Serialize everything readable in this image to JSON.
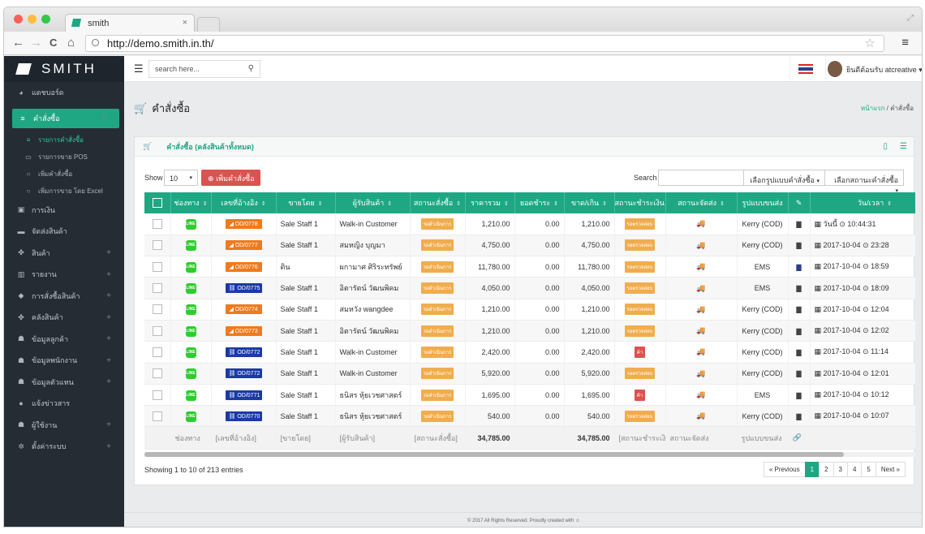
{
  "browser": {
    "tab_title": "smith",
    "tab_close": "×",
    "url": "http://demo.smith.in.th/",
    "back": "←",
    "forward": "→",
    "reload": "C",
    "home": "⌂",
    "star": "☆",
    "menu": "≡"
  },
  "sidebar": {
    "logo": "SMITH",
    "items": [
      {
        "icon": "◕",
        "label": "แดชบอร์ด",
        "plus": ""
      },
      {
        "icon": "≡",
        "label": "คำสั่งซื้อ",
        "plus": "+"
      },
      {
        "icon": "▣",
        "label": "การเงิน",
        "plus": ""
      },
      {
        "icon": "▬",
        "label": "จัดส่งสินค้า",
        "plus": ""
      },
      {
        "icon": "✤",
        "label": "สินค้า",
        "plus": "+"
      },
      {
        "icon": "▥",
        "label": "รายงาน",
        "plus": "+"
      },
      {
        "icon": "◆",
        "label": "การสั่งซื้อสินค้า",
        "plus": "+"
      },
      {
        "icon": "✤",
        "label": "คลังสินค้า",
        "plus": "+"
      },
      {
        "icon": "☗",
        "label": "ข้อมูลลูกค้า",
        "plus": "+"
      },
      {
        "icon": "☗",
        "label": "ข้อมูลพนักงาน",
        "plus": "+"
      },
      {
        "icon": "☗",
        "label": "ข้อมูลตัวแทน",
        "plus": "+"
      },
      {
        "icon": "●",
        "label": "แจ้งข่าวสาร",
        "plus": ""
      },
      {
        "icon": "☗",
        "label": "ผู้ใช้งาน",
        "plus": "+"
      },
      {
        "icon": "✲",
        "label": "ตั้งค่าระบบ",
        "plus": "+"
      }
    ],
    "subitems": [
      {
        "icon": "≡",
        "label": "รายการคำสั่งซื้อ"
      },
      {
        "icon": "▭",
        "label": "รายการขาย POS"
      },
      {
        "icon": "○",
        "label": "เพิ่มคำสั่งซื้อ"
      },
      {
        "icon": "○",
        "label": "เพิ่มการขาย โดย Excel"
      }
    ]
  },
  "topbar": {
    "search_placeholder": "search here...",
    "welcome": "ยินดีต้อนรับ atcreative"
  },
  "page": {
    "title": "คำสั่งซื้อ",
    "breadcrumb_home": "หน้าแรก",
    "breadcrumb_sep": "/",
    "breadcrumb_current": "คำสั่งซื้อ"
  },
  "panel": {
    "title": "คำสั่งซื้อ (คลังสินค้าทั้งหมด)",
    "show_label": "Show",
    "show_value": "10",
    "add_button": "เพิ่มคำสั่งซื้อ",
    "search_label": "Search",
    "filter_shipping": "เลือกรูปแบบคำสั่งซื้อ",
    "filter_status": "เลือกสถานะคำสั่งซื้อ",
    "info": "Showing 1 to 10 of 213 entries",
    "pager": [
      "« Previous",
      "1",
      "2",
      "3",
      "4",
      "5",
      "Next »"
    ]
  },
  "table": {
    "headers": [
      "ช่องทาง",
      "เลขที่อ้างอิง",
      "ขายโดย",
      "ผู้รับสินค้า",
      "สถานะสั่งซื้อ",
      "ราคารวม",
      "ยอดชำระ",
      "ขาด/เกิน",
      "สถานะชำระเงิน",
      "สถานะจัดส่ง",
      "รูปแบบขนส่ง",
      "✎",
      "วัน/เวลา"
    ],
    "rows": [
      {
        "channel": "LINE",
        "ref": "OD/0778",
        "refColor": "#f07a1c",
        "seller": "Sale Staff 1",
        "receiver": "Walk-in Customer",
        "status": "รอดำเนินการ",
        "total": "1,210.00",
        "paid": "0.00",
        "diff": "1,210.00",
        "pay": "รอตรวจสอบ",
        "payRed": false,
        "ship": "Kerry (COD)",
        "fileBlue": false,
        "date": "วันนี้",
        "time": "10:44:31"
      },
      {
        "channel": "LINE",
        "ref": "OD/0777",
        "refColor": "#f07a1c",
        "seller": "Sale Staff 1",
        "receiver": "สมหญิง บุญมา",
        "status": "รอดำเนินการ",
        "total": "4,750.00",
        "paid": "0.00",
        "diff": "4,750.00",
        "pay": "รอตรวจสอบ",
        "payRed": false,
        "ship": "Kerry (COD)",
        "fileBlue": false,
        "date": "2017-10-04",
        "time": "23:28"
      },
      {
        "channel": "LINE",
        "ref": "OD/0776",
        "refColor": "#f07a1c",
        "seller": "ติน",
        "receiver": "ผกามาศ ศิริระทรัพย์",
        "status": "รอดำเนินการ",
        "total": "11,780.00",
        "paid": "0.00",
        "diff": "11,780.00",
        "pay": "รอตรวจสอบ",
        "payRed": false,
        "ship": "EMS",
        "fileBlue": true,
        "date": "2017-10-04",
        "time": "18:59"
      },
      {
        "channel": "LINE",
        "ref": "OD/0775",
        "refColor": "#1b3aa6",
        "seller": "Sale Staff 1",
        "receiver": "อิตารัตน์ วัฒนพิคม",
        "status": "รอดำเนินการ",
        "total": "4,050.00",
        "paid": "0.00",
        "diff": "4,050.00",
        "pay": "รอตรวจสอบ",
        "payRed": false,
        "ship": "EMS",
        "fileBlue": false,
        "date": "2017-10-04",
        "time": "18:09"
      },
      {
        "channel": "LINE",
        "ref": "OD/0774",
        "refColor": "#f07a1c",
        "seller": "Sale Staff 1",
        "receiver": "สมหวัง wangdee",
        "status": "รอดำเนินการ",
        "total": "1,210.00",
        "paid": "0.00",
        "diff": "1,210.00",
        "pay": "รอตรวจสอบ",
        "payRed": false,
        "ship": "Kerry (COD)",
        "fileBlue": false,
        "date": "2017-10-04",
        "time": "12:04"
      },
      {
        "channel": "LINE",
        "ref": "OD/0773",
        "refColor": "#f07a1c",
        "seller": "Sale Staff 1",
        "receiver": "อิตารัตน์ วัฒนพิคม",
        "status": "รอดำเนินการ",
        "total": "1,210.00",
        "paid": "0.00",
        "diff": "1,210.00",
        "pay": "รอตรวจสอบ",
        "payRed": false,
        "ship": "Kerry (COD)",
        "fileBlue": false,
        "date": "2017-10-04",
        "time": "12:02"
      },
      {
        "channel": "LINE",
        "ref": "OD/0772",
        "refColor": "#1b3aa6",
        "seller": "Sale Staff 1",
        "receiver": "Walk-in Customer",
        "status": "รอดำเนินการ",
        "total": "2,420.00",
        "paid": "0.00",
        "diff": "2,420.00",
        "pay": "ค้า",
        "payRed": true,
        "ship": "Kerry (COD)",
        "fileBlue": false,
        "date": "2017-10-04",
        "time": "11:14"
      },
      {
        "channel": "LINE",
        "ref": "OD/0772",
        "refColor": "#1b3aa6",
        "seller": "Sale Staff 1",
        "receiver": "Walk-in Customer",
        "status": "รอดำเนินการ",
        "total": "5,920.00",
        "paid": "0.00",
        "diff": "5,920.00",
        "pay": "รอตรวจสอบ",
        "payRed": false,
        "ship": "Kerry (COD)",
        "fileBlue": false,
        "date": "2017-10-04",
        "time": "12:01"
      },
      {
        "channel": "LINE",
        "ref": "OD/0771",
        "refColor": "#1b3aa6",
        "seller": "Sale Staff 1",
        "receiver": "ธนิสร หุ้ยเวชศาสตร์",
        "status": "รอดำเนินการ",
        "total": "1,695.00",
        "paid": "0.00",
        "diff": "1,695.00",
        "pay": "ค้า",
        "payRed": true,
        "ship": "EMS",
        "fileBlue": false,
        "date": "2017-10-04",
        "time": "10:12"
      },
      {
        "channel": "LINE",
        "ref": "OD/0770",
        "refColor": "#1b3aa6",
        "seller": "Sale Staff 1",
        "receiver": "ธนิสร หุ้ยเวชศาสตร์",
        "status": "รอดำเนินการ",
        "total": "540.00",
        "paid": "0.00",
        "diff": "540.00",
        "pay": "รอตรวจสอบ",
        "payRed": false,
        "ship": "Kerry (COD)",
        "fileBlue": false,
        "date": "2017-10-04",
        "time": "10:07"
      }
    ],
    "footer": [
      "ช่องทาง",
      "[เลขที่อ้างอิง]",
      "[ขายโดย]",
      "[ผู้รับสินค้า]",
      "[สถานะสั่งซื้อ]",
      "34,785.00",
      "",
      "34,785.00",
      "[สถานะชำระเงิน]",
      "สถานะจัดส่ง",
      "รูปแบบขนส่ง",
      "🔗",
      ""
    ]
  },
  "footer": "© 2017 All Rights Reserved. Proudly created with ☺",
  "colors": {
    "accent": "#1fa783",
    "sidebar": "#262c34",
    "danger": "#d9534f",
    "warning": "#f0ad4e"
  }
}
